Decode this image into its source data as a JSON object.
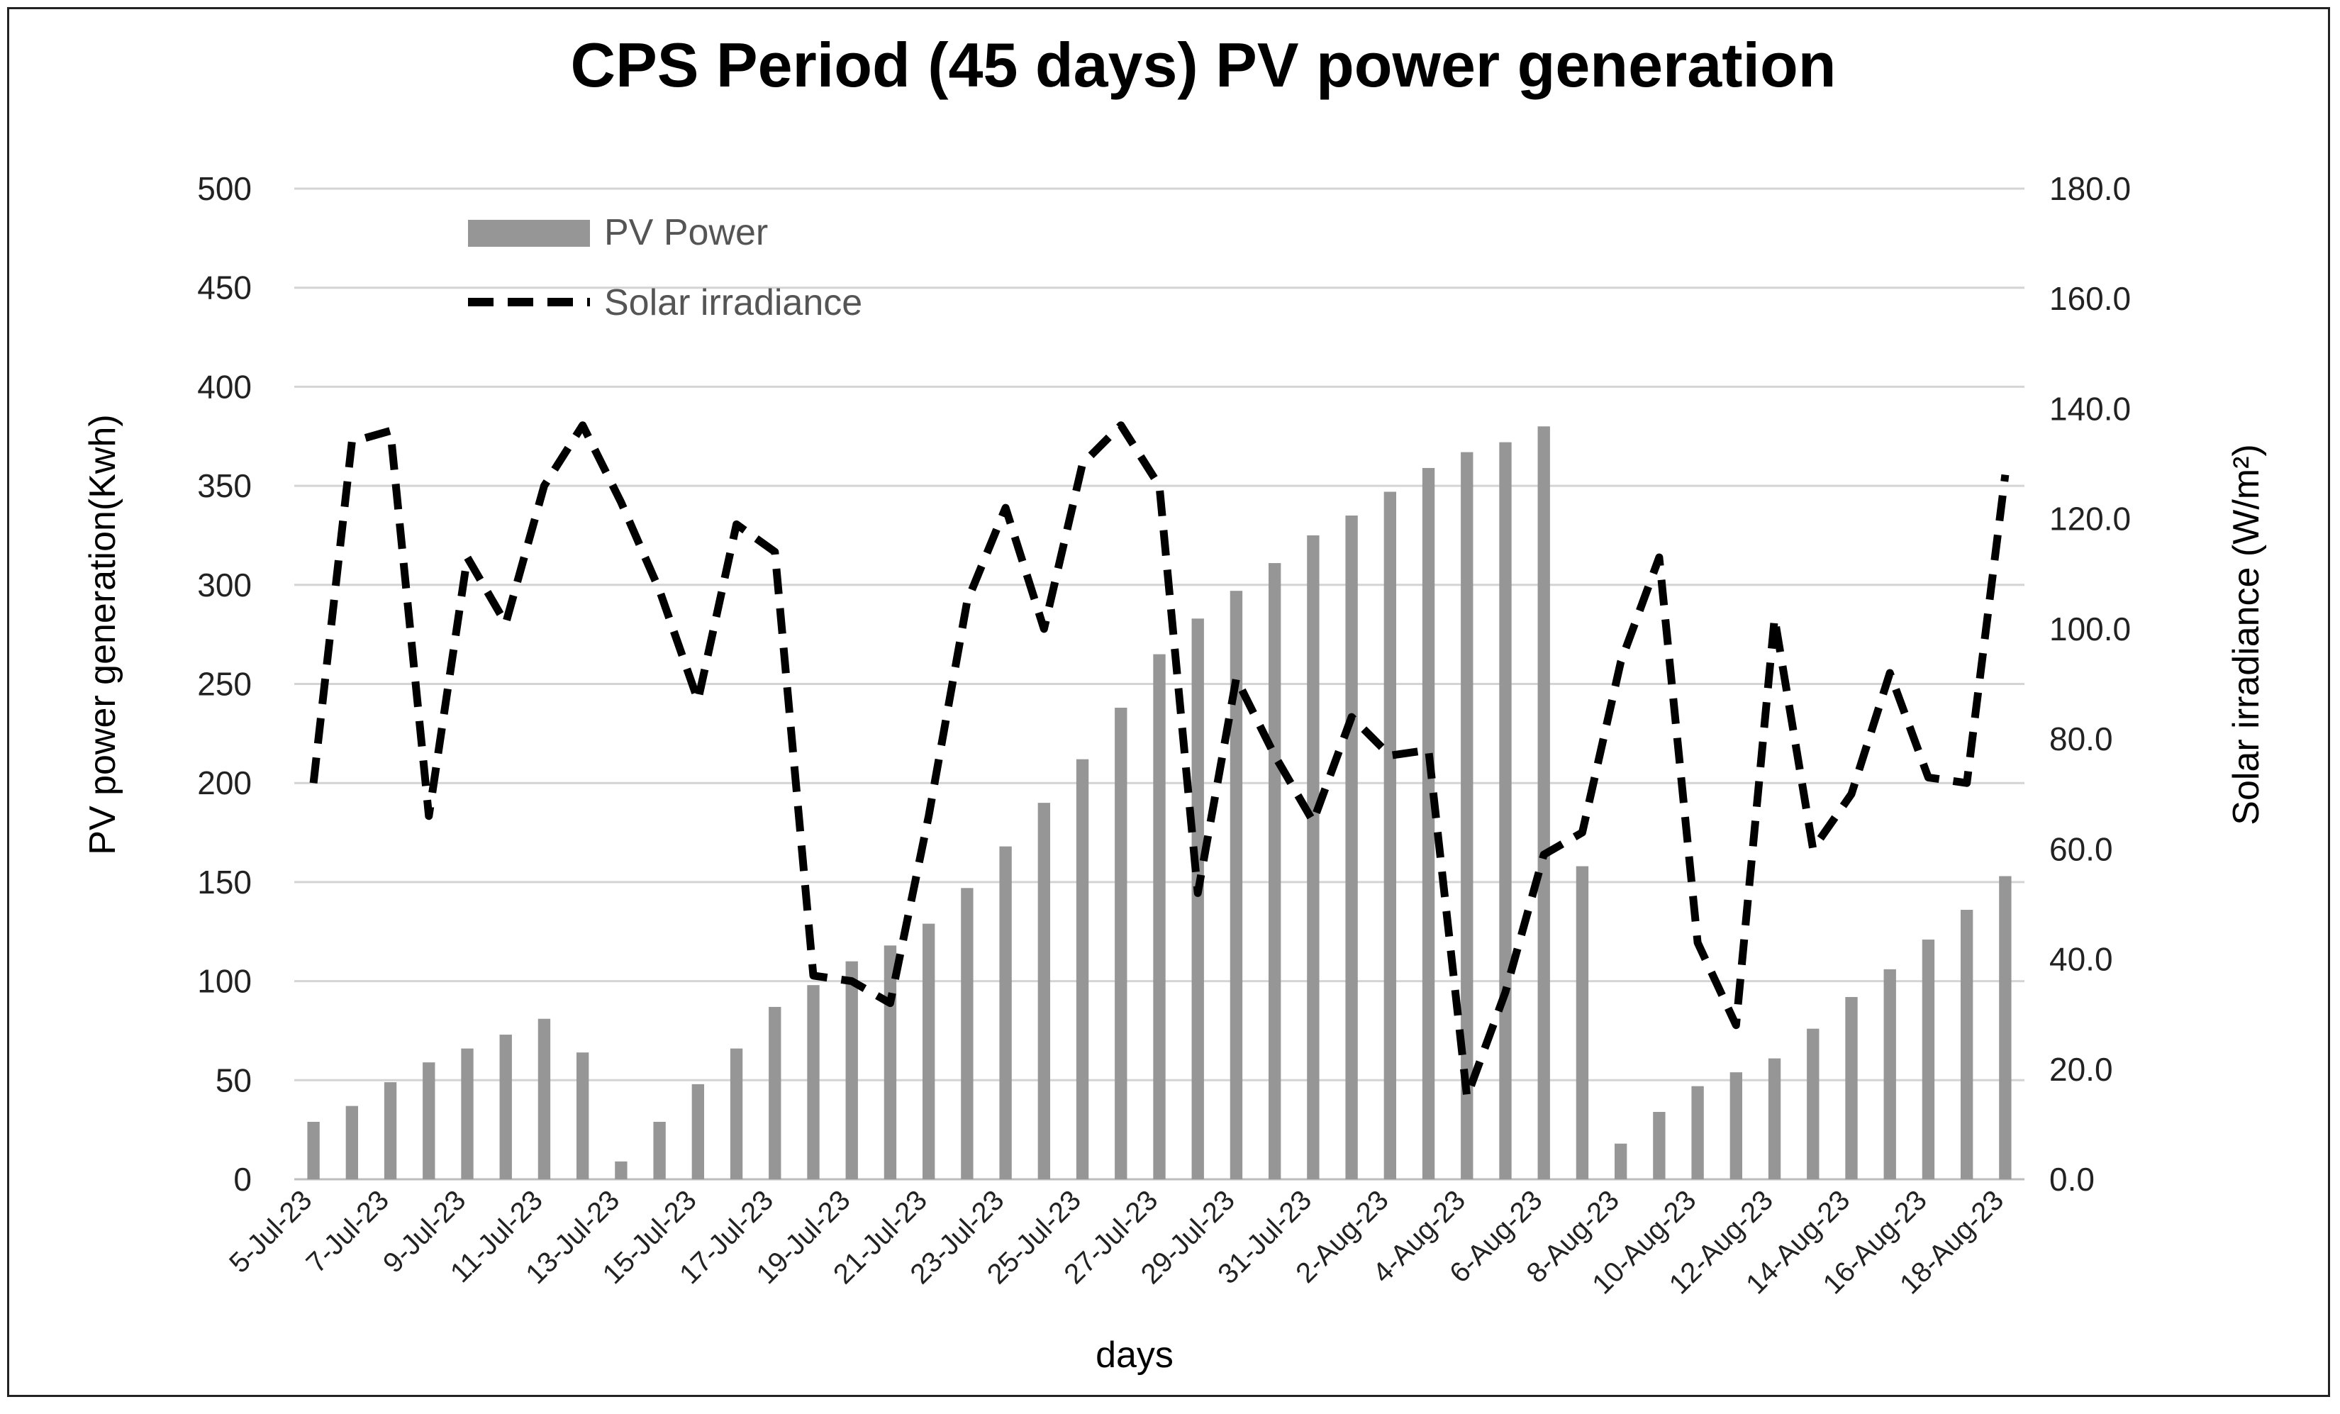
{
  "chart_data": {
    "type": "bar+line",
    "title": "CPS Period (45 days)  PV power generation",
    "xlabel": "days",
    "ylabel": "PV power generation(Kwh)",
    "y2label": "Solar irradiance (W/m²)",
    "ylim": [
      0,
      500
    ],
    "y2lim": [
      0,
      180
    ],
    "yticks": [
      "0",
      "50",
      "100",
      "150",
      "200",
      "250",
      "300",
      "350",
      "400",
      "450",
      "500"
    ],
    "y2ticks": [
      "0.0",
      "20.0",
      "40.0",
      "60.0",
      "80.0",
      "100.0",
      "120.0",
      "140.0",
      "160.0",
      "180.0"
    ],
    "x_tick_labels": [
      "5-Jul-23",
      "7-Jul-23",
      "9-Jul-23",
      "11-Jul-23",
      "13-Jul-23",
      "15-Jul-23",
      "17-Jul-23",
      "19-Jul-23",
      "21-Jul-23",
      "23-Jul-23",
      "25-Jul-23",
      "27-Jul-23",
      "29-Jul-23",
      "31-Jul-23",
      "2-Aug-23",
      "4-Aug-23",
      "6-Aug-23",
      "8-Aug-23",
      "10-Aug-23",
      "12-Aug-23",
      "14-Aug-23",
      "16-Aug-23",
      "18-Aug-23"
    ],
    "categories": [
      "5-Jul-23",
      "6-Jul-23",
      "7-Jul-23",
      "8-Jul-23",
      "9-Jul-23",
      "10-Jul-23",
      "11-Jul-23",
      "12-Jul-23",
      "13-Jul-23",
      "14-Jul-23",
      "15-Jul-23",
      "16-Jul-23",
      "17-Jul-23",
      "18-Jul-23",
      "19-Jul-23",
      "20-Jul-23",
      "21-Jul-23",
      "22-Jul-23",
      "23-Jul-23",
      "24-Jul-23",
      "25-Jul-23",
      "26-Jul-23",
      "27-Jul-23",
      "28-Jul-23",
      "29-Jul-23",
      "30-Jul-23",
      "31-Jul-23",
      "1-Aug-23",
      "2-Aug-23",
      "3-Aug-23",
      "4-Aug-23",
      "5-Aug-23",
      "6-Aug-23",
      "7-Aug-23",
      "8-Aug-23",
      "9-Aug-23",
      "10-Aug-23",
      "11-Aug-23",
      "12-Aug-23",
      "13-Aug-23",
      "14-Aug-23",
      "15-Aug-23",
      "16-Aug-23",
      "17-Aug-23",
      "18-Aug-23"
    ],
    "series": [
      {
        "name": "PV Power",
        "type": "bar",
        "axis": "left",
        "color": "#969696",
        "values": [
          29,
          37,
          49,
          59,
          66,
          73,
          81,
          64,
          9,
          29,
          48,
          66,
          87,
          98,
          110,
          118,
          129,
          147,
          168,
          190,
          212,
          238,
          265,
          283,
          297,
          311,
          325,
          335,
          347,
          359,
          367,
          372,
          380,
          158,
          18,
          34,
          47,
          54,
          61,
          76,
          92,
          106,
          121,
          136,
          153
        ]
      },
      {
        "name": "Solar irradiance",
        "type": "line",
        "axis": "right",
        "style": "dashed",
        "color": "#000000",
        "values": [
          72,
          134,
          136,
          66,
          113,
          101,
          126,
          137,
          123,
          107,
          87,
          119,
          114,
          37,
          36,
          32,
          66,
          105,
          122,
          100,
          130,
          137,
          126,
          52,
          91,
          77,
          65,
          84,
          77,
          78,
          15,
          34,
          59,
          63,
          94,
          113,
          43,
          28,
          102,
          60,
          70,
          92,
          73,
          72,
          128
        ]
      }
    ],
    "legend": {
      "position": "top-left",
      "entries": [
        "PV Power",
        "Solar irradiance"
      ]
    },
    "grid": true
  }
}
